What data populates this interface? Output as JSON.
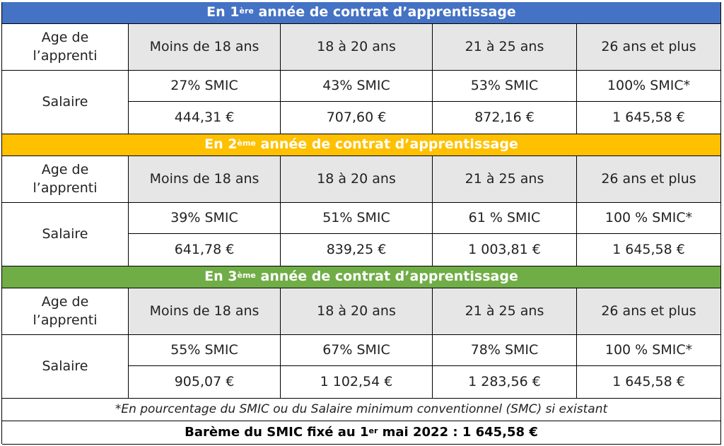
{
  "sections": [
    {
      "title": {
        "before": "En 1",
        "sup": "ère",
        "after": " année de contrat d’apprentissage"
      },
      "age_label": "Age de l’apprenti",
      "ages": [
        "Moins de 18 ans",
        "18 à 20 ans",
        "21 à 25 ans",
        "26 ans et plus"
      ],
      "salary_label": "Salaire",
      "percentages": [
        "27% SMIC",
        "43% SMIC",
        "53% SMIC",
        "100% SMIC*"
      ],
      "amounts": [
        "444,31 €",
        "707,60 €",
        "872,16 €",
        "1 645,58 €"
      ]
    },
    {
      "title": {
        "before": "En 2",
        "sup": "ème",
        "after": " année de contrat d’apprentissage"
      },
      "age_label": "Age de l’apprenti",
      "ages": [
        "Moins de 18 ans",
        "18 à 20 ans",
        "21 à 25 ans",
        "26 ans et plus"
      ],
      "salary_label": "Salaire",
      "percentages": [
        "39% SMIC",
        "51% SMIC",
        "61 % SMIC",
        "100 % SMIC*"
      ],
      "amounts": [
        "641,78 €",
        "839,25 €",
        "1 003,81 €",
        "1 645,58 €"
      ]
    },
    {
      "title": {
        "before": "En 3",
        "sup": "ème",
        "after": " année de contrat d’apprentissage"
      },
      "age_label": "Age de l’apprenti",
      "ages": [
        "Moins de 18 ans",
        "18 à 20 ans",
        "21 à 25 ans",
        "26 ans et plus"
      ],
      "salary_label": "Salaire",
      "percentages": [
        "55% SMIC",
        "67% SMIC",
        "78% SMIC",
        "100 % SMIC*"
      ],
      "amounts": [
        "905,07 €",
        "1 102,54 €",
        "1 283,56 €",
        "1 645,58 €"
      ]
    }
  ],
  "footnote": "*En pourcentage du SMIC ou du Salaire minimum conventionnel (SMC) si existant",
  "footer": {
    "before": "Barème du SMIC fixé au 1",
    "sup": "er",
    "after": " mai 2022 : 1 645,58 €"
  }
}
